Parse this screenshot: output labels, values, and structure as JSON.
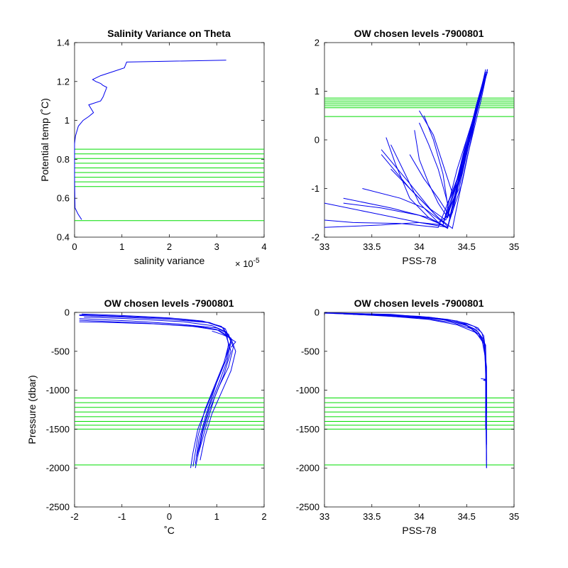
{
  "figure": {
    "colors": {
      "profile": "#0000ee",
      "levels": "#00dd00",
      "axis": "#000000"
    }
  },
  "chart_data": [
    {
      "id": "salvar",
      "type": "line",
      "title": "Salinity Variance on Theta",
      "xlabel": "salinity variance",
      "ylabel": "Potential temp (˚C)",
      "xlim": [
        0,
        4
      ],
      "ylim": [
        0.4,
        1.4
      ],
      "xticks": [
        "0",
        "1",
        "2",
        "3",
        "4"
      ],
      "yticks": [
        "0.4",
        "0.6",
        "0.8",
        "1",
        "1.2",
        "1.4"
      ],
      "xtick_values": [
        0,
        1,
        2,
        3,
        4
      ],
      "ytick_values": [
        0.4,
        0.6,
        0.8,
        1.0,
        1.2,
        1.4
      ],
      "x_multiplier_base": "× 10",
      "x_multiplier_exp": "-5",
      "levels": [
        0.485,
        0.66,
        0.684,
        0.708,
        0.732,
        0.756,
        0.78,
        0.804,
        0.828,
        0.852
      ],
      "series": [
        {
          "x": [
            0.15,
            0.07,
            0.01,
            0.0,
            0.0,
            0.02,
            0.08,
            0.18,
            0.3,
            0.4,
            0.35,
            0.3,
            0.55,
            0.6,
            0.68,
            0.6,
            0.55,
            0.45,
            0.38,
            0.55,
            0.8,
            1.05,
            1.1,
            3.2
          ],
          "y": [
            0.49,
            0.52,
            0.55,
            0.7,
            0.88,
            0.92,
            0.97,
            1.0,
            1.02,
            1.04,
            1.06,
            1.08,
            1.1,
            1.12,
            1.17,
            1.18,
            1.19,
            1.2,
            1.21,
            1.23,
            1.25,
            1.27,
            1.3,
            1.31
          ]
        }
      ]
    },
    {
      "id": "ts",
      "type": "line",
      "title": "OW chosen levels -7900801",
      "xlabel": "PSS-78",
      "ylabel": "",
      "xlim": [
        33,
        35
      ],
      "ylim": [
        -2,
        2
      ],
      "xticks": [
        "33",
        "33.5",
        "34",
        "34.5",
        "35"
      ],
      "yticks": [
        "-2",
        "-1",
        "0",
        "1",
        "2"
      ],
      "xtick_values": [
        33,
        33.5,
        34,
        34.5,
        35
      ],
      "ytick_values": [
        -2,
        -1,
        0,
        1,
        2
      ],
      "levels": [
        0.48,
        0.66,
        0.7,
        0.74,
        0.78,
        0.82,
        0.86
      ],
      "series": [
        {
          "x": [
            33.0,
            33.6,
            34.0,
            34.3,
            34.45,
            34.6,
            34.7
          ],
          "y": [
            -1.8,
            -1.75,
            -1.7,
            -1.8,
            -0.5,
            0.6,
            1.45
          ]
        },
        {
          "x": [
            33.0,
            33.5,
            34.0,
            34.25,
            34.4,
            34.58,
            34.7
          ],
          "y": [
            -1.3,
            -1.5,
            -1.7,
            -1.75,
            -0.6,
            0.5,
            1.4
          ]
        },
        {
          "x": [
            33.2,
            33.7,
            34.1,
            34.3,
            34.5,
            34.65,
            34.72
          ],
          "y": [
            -1.2,
            -1.4,
            -1.6,
            -1.82,
            -0.2,
            0.9,
            1.45
          ]
        },
        {
          "x": [
            33.65,
            33.75,
            33.9,
            34.1,
            34.3,
            34.5,
            34.7
          ],
          "y": [
            0.05,
            -0.5,
            -1.2,
            -1.6,
            -1.8,
            -0.1,
            1.35
          ]
        },
        {
          "x": [
            33.7,
            33.85,
            34.0,
            34.2,
            34.35,
            34.55,
            34.72
          ],
          "y": [
            -0.1,
            -0.7,
            -1.3,
            -1.7,
            -1.5,
            0.3,
            1.4
          ]
        },
        {
          "x": [
            33.6,
            33.9,
            34.15,
            34.3,
            34.45,
            34.62,
            34.7
          ],
          "y": [
            -0.2,
            -0.9,
            -1.5,
            -1.78,
            -0.9,
            0.7,
            1.3
          ]
        },
        {
          "x": [
            33.4,
            33.8,
            34.05,
            34.25,
            34.42,
            34.6,
            34.72
          ],
          "y": [
            -1.0,
            -1.2,
            -1.4,
            -1.7,
            -1.0,
            0.6,
            1.45
          ]
        },
        {
          "x": [
            33.95,
            34.0,
            34.1,
            34.2,
            34.3,
            34.5,
            34.7
          ],
          "y": [
            0.2,
            -0.4,
            -0.9,
            -1.3,
            -1.6,
            0.0,
            1.3
          ]
        },
        {
          "x": [
            34.0,
            34.15,
            34.25,
            34.35,
            34.5,
            34.62,
            34.7
          ],
          "y": [
            0.6,
            0.1,
            -0.5,
            -1.1,
            -0.3,
            0.8,
            1.4
          ]
        },
        {
          "x": [
            34.0,
            34.1,
            34.2,
            34.3,
            34.45,
            34.6,
            34.7
          ],
          "y": [
            0.35,
            -0.1,
            -0.6,
            -1.3,
            -0.7,
            0.6,
            1.35
          ]
        },
        {
          "x": [
            33.7,
            33.95,
            34.2,
            34.35,
            34.5,
            34.65,
            34.72
          ],
          "y": [
            -0.6,
            -1.1,
            -1.6,
            -1.82,
            -0.4,
            0.8,
            1.45
          ]
        },
        {
          "x": [
            33.0,
            33.3,
            33.8,
            34.2,
            34.4,
            34.58,
            34.68
          ],
          "y": [
            -1.65,
            -1.7,
            -1.72,
            -1.8,
            -0.8,
            0.5,
            1.2
          ]
        },
        {
          "x": [
            33.9,
            34.05,
            34.2,
            34.3,
            34.45,
            34.6,
            34.7
          ],
          "y": [
            -0.3,
            -0.8,
            -1.2,
            -1.5,
            -0.6,
            0.6,
            1.35
          ]
        },
        {
          "x": [
            34.05,
            34.15,
            34.25,
            34.32,
            34.45,
            34.6,
            34.7
          ],
          "y": [
            0.5,
            0.0,
            -0.7,
            -1.6,
            -0.5,
            0.7,
            1.4
          ]
        },
        {
          "x": [
            33.6,
            33.9,
            34.1,
            34.28,
            34.42,
            34.6,
            34.7
          ],
          "y": [
            -0.3,
            -1.0,
            -1.4,
            -1.65,
            -0.9,
            0.5,
            1.3
          ]
        },
        {
          "x": [
            33.2,
            33.6,
            34.0,
            34.25,
            34.42,
            34.58,
            34.7
          ],
          "y": [
            -1.3,
            -1.4,
            -1.55,
            -1.75,
            -0.7,
            0.5,
            1.4
          ]
        }
      ]
    },
    {
      "id": "tp",
      "type": "line",
      "title": "OW chosen levels -7900801",
      "xlabel": "˚C",
      "ylabel": "Pressure (dbar)",
      "xlim": [
        -2,
        2
      ],
      "ylim": [
        -2500,
        0
      ],
      "xticks": [
        "-2",
        "-1",
        "0",
        "1",
        "2"
      ],
      "yticks": [
        "-2500",
        "-2000",
        "-1500",
        "-1000",
        "-500",
        "0"
      ],
      "xtick_values": [
        -2,
        -1,
        0,
        1,
        2
      ],
      "ytick_values": [
        -2500,
        -2000,
        -1500,
        -1000,
        -500,
        0
      ],
      "levels": [
        -1100,
        -1160,
        -1220,
        -1280,
        -1340,
        -1400,
        -1450,
        -1500,
        -1960
      ],
      "series": [
        {
          "x": [
            -1.9,
            -1.0,
            0.0,
            0.8,
            1.15,
            1.25,
            1.2,
            1.0,
            0.8,
            0.6,
            0.5,
            0.45
          ],
          "y": [
            -40,
            -60,
            -90,
            -130,
            -200,
            -400,
            -600,
            -900,
            -1200,
            -1500,
            -1800,
            -2000
          ]
        },
        {
          "x": [
            -1.9,
            -0.8,
            0.2,
            1.0,
            1.25,
            1.35,
            1.25,
            1.05,
            0.85,
            0.7,
            0.6,
            0.55
          ],
          "y": [
            -80,
            -110,
            -150,
            -200,
            -280,
            -450,
            -700,
            -950,
            -1250,
            -1550,
            -1850,
            -2000
          ]
        },
        {
          "x": [
            -1.85,
            -1.0,
            0.0,
            0.7,
            1.1,
            1.3,
            1.2,
            1.0,
            0.78,
            0.62,
            0.55
          ],
          "y": [
            -20,
            -40,
            -70,
            -110,
            -180,
            -350,
            -600,
            -900,
            -1300,
            -1650,
            -1950
          ]
        },
        {
          "x": [
            -1.9,
            -0.5,
            0.5,
            1.05,
            1.3,
            1.4,
            1.3,
            1.12,
            0.9,
            0.75,
            0.65
          ],
          "y": [
            -100,
            -140,
            -180,
            -230,
            -330,
            -500,
            -750,
            -1000,
            -1300,
            -1600,
            -1900
          ]
        },
        {
          "x": [
            -1.8,
            -0.9,
            0.3,
            0.9,
            1.2,
            1.25,
            1.15,
            0.95,
            0.75,
            0.6,
            0.5
          ],
          "y": [
            -60,
            -80,
            -120,
            -170,
            -250,
            -420,
            -650,
            -950,
            -1250,
            -1600,
            -1980
          ]
        },
        {
          "x": [
            -1.9,
            -1.2,
            -0.2,
            0.6,
            1.0,
            1.2,
            1.3,
            1.15,
            0.95,
            0.78,
            0.62
          ],
          "y": [
            -120,
            -130,
            -150,
            -180,
            -220,
            -300,
            -500,
            -800,
            -1100,
            -1450,
            -1800
          ]
        },
        {
          "x": [
            -1.9,
            -1.0,
            0.1,
            0.85,
            1.18,
            1.3,
            1.22,
            1.05,
            0.85,
            0.7,
            0.58
          ],
          "y": [
            -30,
            -50,
            -80,
            -130,
            -210,
            -380,
            -620,
            -900,
            -1200,
            -1520,
            -1850
          ]
        },
        {
          "x": [
            0.9,
            1.1,
            1.25,
            1.4,
            1.3
          ],
          "y": [
            -240,
            -280,
            -320,
            -380,
            -450
          ]
        }
      ]
    },
    {
      "id": "sp",
      "type": "line",
      "title": "OW chosen levels -7900801",
      "xlabel": "PSS-78",
      "ylabel": "",
      "xlim": [
        33,
        35
      ],
      "ylim": [
        -2500,
        0
      ],
      "xticks": [
        "33",
        "33.5",
        "34",
        "34.5",
        "35"
      ],
      "yticks": [
        "-2500",
        "-2000",
        "-1500",
        "-1000",
        "-500",
        "0"
      ],
      "xtick_values": [
        33,
        33.5,
        34,
        34.5,
        35
      ],
      "ytick_values": [
        -2500,
        -2000,
        -1500,
        -1000,
        -500,
        0
      ],
      "levels": [
        -1100,
        -1160,
        -1220,
        -1280,
        -1340,
        -1400,
        -1450,
        -1500,
        -1960
      ],
      "series": [
        {
          "x": [
            33.0,
            33.5,
            34.0,
            34.3,
            34.5,
            34.62,
            34.68,
            34.7,
            34.7,
            34.71
          ],
          "y": [
            -5,
            -20,
            -50,
            -90,
            -140,
            -200,
            -300,
            -500,
            -1000,
            -2000
          ]
        },
        {
          "x": [
            33.0,
            33.6,
            34.1,
            34.4,
            34.58,
            34.66,
            34.7,
            34.71,
            34.71
          ],
          "y": [
            -10,
            -30,
            -60,
            -110,
            -180,
            -260,
            -450,
            -900,
            -1900
          ]
        },
        {
          "x": [
            33.1,
            33.8,
            34.2,
            34.45,
            34.6,
            34.68,
            34.7,
            34.7
          ],
          "y": [
            -15,
            -40,
            -80,
            -140,
            -220,
            -350,
            -700,
            -1500
          ]
        },
        {
          "x": [
            33.2,
            33.9,
            34.3,
            34.5,
            34.63,
            34.69,
            34.7,
            34.71
          ],
          "y": [
            -20,
            -55,
            -100,
            -170,
            -280,
            -420,
            -800,
            -1700
          ]
        },
        {
          "x": [
            33.3,
            34.0,
            34.35,
            34.55,
            34.66,
            34.7,
            34.71
          ],
          "y": [
            -25,
            -70,
            -130,
            -210,
            -340,
            -600,
            -1200
          ]
        },
        {
          "x": [
            33.5,
            34.1,
            34.4,
            34.6,
            34.68,
            34.71,
            34.71
          ],
          "y": [
            -30,
            -90,
            -160,
            -260,
            -400,
            -700,
            -1300
          ]
        },
        {
          "x": [
            33.0,
            33.7,
            34.15,
            34.48,
            34.62,
            34.7,
            34.7,
            34.71
          ],
          "y": [
            -8,
            -25,
            -70,
            -150,
            -250,
            -420,
            -1000,
            -2000
          ]
        },
        {
          "x": [
            34.65,
            34.7,
            34.68,
            34.7
          ],
          "y": [
            -850,
            -860,
            -870,
            -880
          ]
        }
      ]
    }
  ]
}
